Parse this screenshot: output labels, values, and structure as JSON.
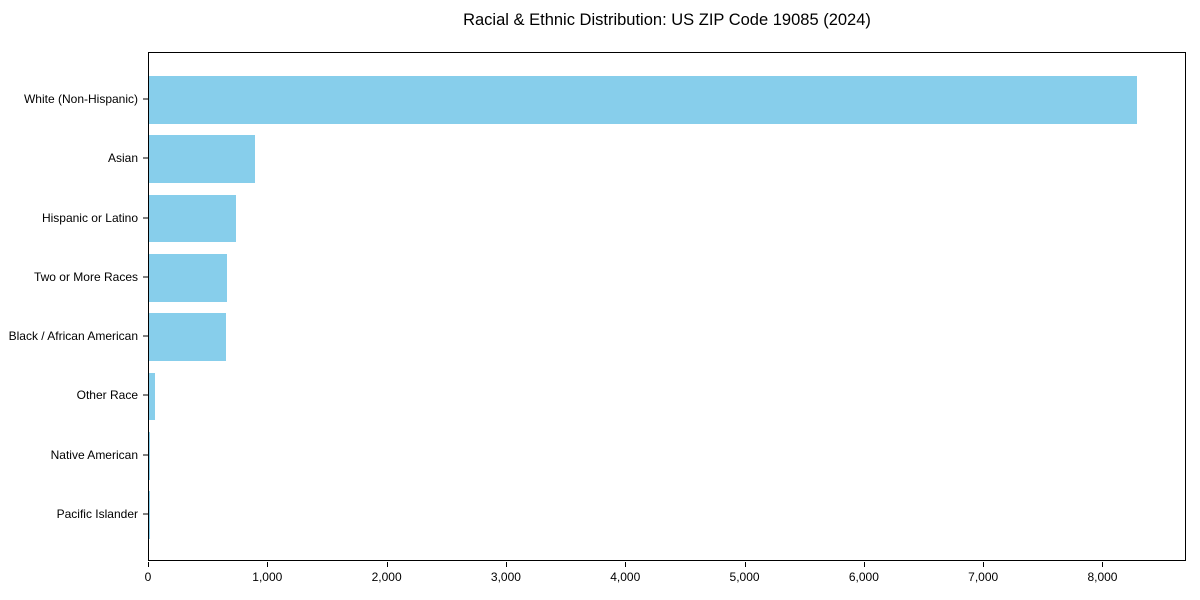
{
  "title": "Racial & Ethnic Distribution: US ZIP Code 19085 (2024)",
  "chart_data": {
    "type": "bar",
    "orientation": "horizontal",
    "title": "Racial & Ethnic Distribution: US ZIP Code 19085 (2024)",
    "xlabel": "",
    "ylabel": "",
    "categories": [
      "White (Non-Hispanic)",
      "Asian",
      "Hispanic or Latino",
      "Two or More Races",
      "Black / African American",
      "Other Race",
      "Native American",
      "Pacific Islander"
    ],
    "values": [
      8280,
      890,
      730,
      655,
      645,
      50,
      6,
      2
    ],
    "xlim": [
      0,
      8700
    ],
    "x_ticks": [
      0,
      1000,
      2000,
      3000,
      4000,
      5000,
      6000,
      7000,
      8000
    ],
    "x_tick_labels": [
      "0",
      "1,000",
      "2,000",
      "3,000",
      "4,000",
      "5,000",
      "6,000",
      "7,000",
      "8,000"
    ],
    "bar_color": "#87CEEB",
    "frame_color": "#000000",
    "text_color": "#000000",
    "background_color": "#ffffff",
    "grid": false,
    "legend": null
  }
}
